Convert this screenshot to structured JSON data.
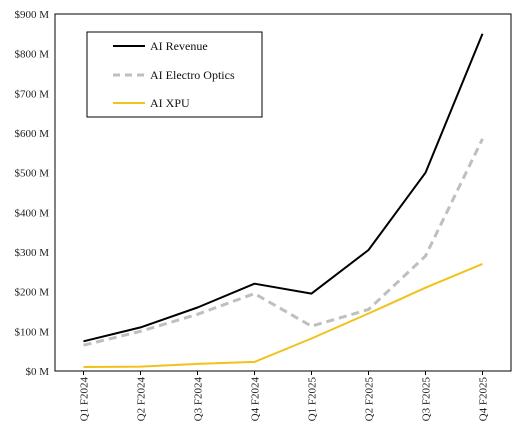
{
  "chart_data": {
    "type": "line",
    "categories": [
      "Q1 F2024",
      "Q2 F2024",
      "Q3 F2024",
      "Q4 F2024",
      "Q1 F2025",
      "Q2 F2025",
      "Q3 F2025",
      "Q4 F2025"
    ],
    "ylim": [
      0,
      900
    ],
    "yticks": [
      0,
      100,
      200,
      300,
      400,
      500,
      600,
      700,
      800,
      900
    ],
    "ytick_labels": [
      "$0 M",
      "$100 M",
      "$200 M",
      "$300 M",
      "$400 M",
      "$500 M",
      "$600 M",
      "$700 M",
      "$800 M",
      "$900 M"
    ],
    "grid": false,
    "legend_position": "top-left",
    "series": [
      {
        "name": "AI Revenue",
        "color": "#000000",
        "dash": "solid",
        "values": [
          75,
          110,
          160,
          220,
          195,
          305,
          500,
          850
        ]
      },
      {
        "name": "AI Electro Optics",
        "color": "#bfbfbf",
        "dash": "dashed",
        "values": [
          65,
          100,
          143,
          195,
          113,
          155,
          290,
          585
        ]
      },
      {
        "name": "AI XPU",
        "color": "#f2c21b",
        "dash": "solid",
        "values": [
          10,
          11,
          18,
          23,
          82,
          145,
          210,
          270
        ]
      }
    ]
  }
}
